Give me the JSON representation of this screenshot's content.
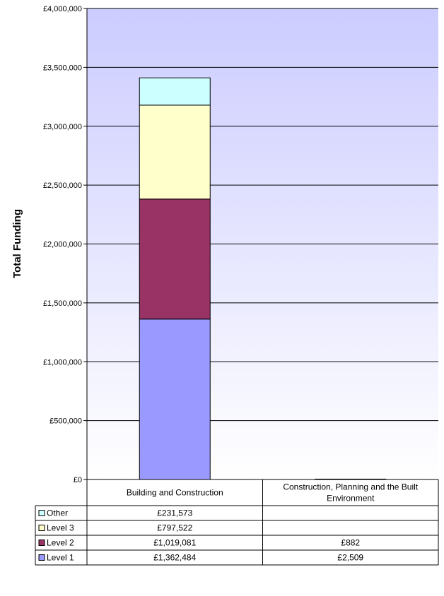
{
  "chart_data": {
    "type": "bar",
    "stacked": true,
    "ylabel": "Total Funding",
    "xlabel": "",
    "ylim": [
      0,
      4000000
    ],
    "y_ticks": [
      0,
      500000,
      1000000,
      1500000,
      2000000,
      2500000,
      3000000,
      3500000,
      4000000
    ],
    "y_tick_labels": [
      "£0",
      "£500,000",
      "£1,000,000",
      "£1,500,000",
      "£2,000,000",
      "£2,500,000",
      "£3,000,000",
      "£3,500,000",
      "£4,000,000"
    ],
    "grid": true,
    "categories": [
      "Building and Construction",
      "Construction, Planning and the Built Environment"
    ],
    "series": [
      {
        "name": "Other",
        "color": "#ccffff",
        "values": [
          231573,
          null
        ],
        "labels": [
          "£231,573",
          ""
        ]
      },
      {
        "name": "Level 3",
        "color": "#ffffcc",
        "values": [
          797522,
          null
        ],
        "labels": [
          "£797,522",
          ""
        ]
      },
      {
        "name": "Level 2",
        "color": "#993366",
        "values": [
          1019081,
          882
        ],
        "labels": [
          "£1,019,081",
          "£882"
        ]
      },
      {
        "name": "Level 1",
        "color": "#9999ff",
        "values": [
          1362484,
          2509
        ],
        "labels": [
          "£1,362,484",
          "£2,509"
        ]
      }
    ],
    "data_table": true,
    "legend": "data-table-left"
  },
  "colors": {
    "plot_top": "#ccccff",
    "plot_bottom": "#ffffff",
    "gridline": "#000000"
  }
}
